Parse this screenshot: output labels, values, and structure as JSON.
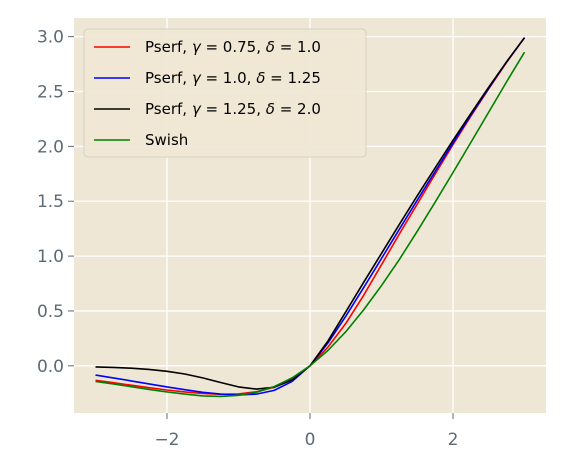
{
  "chart_data": {
    "type": "line",
    "title": "",
    "xlabel": "",
    "ylabel": "",
    "xlim": [
      -3.3,
      3.3
    ],
    "ylim": [
      -0.43,
      3.17
    ],
    "grid": true,
    "legend_position": "top-left",
    "x_ticks": [
      -2,
      0,
      2
    ],
    "x_tick_labels": [
      "−2",
      "0",
      "2"
    ],
    "y_ticks": [
      0.0,
      0.5,
      1.0,
      1.5,
      2.0,
      2.5,
      3.0
    ],
    "y_tick_labels": [
      "0.0",
      "0.5",
      "1.0",
      "1.5",
      "2.0",
      "2.5",
      "3.0"
    ],
    "x": [
      -3.0,
      -2.75,
      -2.5,
      -2.25,
      -2.0,
      -1.75,
      -1.5,
      -1.25,
      -1.0,
      -0.75,
      -0.5,
      -0.25,
      0.0,
      0.25,
      0.5,
      0.75,
      1.0,
      1.25,
      1.5,
      1.75,
      2.0,
      2.25,
      2.5,
      2.75,
      3.0
    ],
    "series": [
      {
        "name": "Pserf, γ = 0.75, δ = 1.0",
        "legend_parts": [
          "Pserf, ",
          "γ",
          " = 0.75, ",
          "δ",
          " = 1.0"
        ],
        "color": "#ff0000",
        "values": [
          -0.132,
          -0.154,
          -0.177,
          -0.199,
          -0.22,
          -0.238,
          -0.252,
          -0.26,
          -0.256,
          -0.237,
          -0.195,
          -0.119,
          0.0,
          0.17,
          0.387,
          0.642,
          0.922,
          1.202,
          1.475,
          1.748,
          2.016,
          2.276,
          2.526,
          2.767,
          2.99
        ]
      },
      {
        "name": "Pserf, γ = 1.0, δ = 1.25",
        "legend_parts": [
          "Pserf, ",
          "γ",
          " = 1.0, ",
          "δ",
          " = 1.25"
        ],
        "color": "#0000ff",
        "values": [
          -0.085,
          -0.11,
          -0.137,
          -0.165,
          -0.192,
          -0.218,
          -0.241,
          -0.258,
          -0.266,
          -0.258,
          -0.224,
          -0.142,
          0.0,
          0.208,
          0.452,
          0.712,
          0.978,
          1.245,
          1.51,
          1.772,
          2.03,
          2.285,
          2.532,
          2.772,
          2.99
        ]
      },
      {
        "name": "Pserf, γ = 1.25, δ = 2.0",
        "legend_parts": [
          "Pserf, ",
          "γ",
          " = 1.25, ",
          "δ",
          " = 2.0"
        ],
        "color": "#000000",
        "values": [
          -0.01,
          -0.014,
          -0.022,
          -0.033,
          -0.05,
          -0.075,
          -0.11,
          -0.152,
          -0.192,
          -0.212,
          -0.196,
          -0.128,
          0.0,
          0.225,
          0.492,
          0.76,
          1.025,
          1.29,
          1.55,
          1.805,
          2.055,
          2.3,
          2.54,
          2.772,
          2.99
        ]
      },
      {
        "name": "Swish",
        "legend_parts": [
          "Swish"
        ],
        "color": "#008000",
        "values": [
          -0.142,
          -0.166,
          -0.19,
          -0.215,
          -0.238,
          -0.258,
          -0.274,
          -0.279,
          -0.269,
          -0.24,
          -0.189,
          -0.11,
          0.0,
          0.14,
          0.311,
          0.51,
          0.731,
          0.97,
          1.227,
          1.492,
          1.762,
          2.036,
          2.313,
          2.59,
          2.858
        ]
      }
    ]
  }
}
